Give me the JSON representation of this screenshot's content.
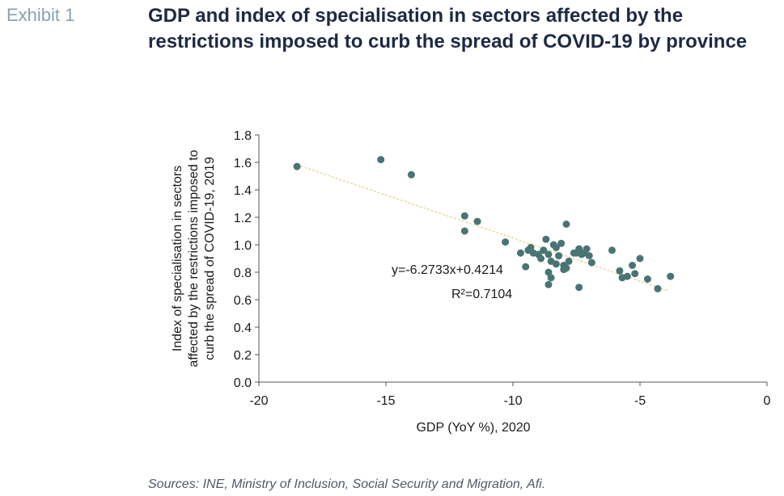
{
  "header": {
    "exhibit_label": "Exhibit 1",
    "title": "GDP and index of specialisation in sectors affected by the restrictions imposed to curb the spread of COVID-19 by province"
  },
  "footer": {
    "source": "Sources: INE, Ministry of Inclusion, Social Security and Migration, Afi."
  },
  "colors": {
    "point": "#4a7474",
    "trendline": "#e6dca0",
    "axis": "#555555",
    "exhibit": "#8aa0b4",
    "title": "#1e2a44"
  },
  "chart_data": {
    "type": "scatter",
    "title": "GDP and index of specialisation in sectors affected by the restrictions imposed to curb the spread of COVID-19 by province",
    "xlabel": "GDP (YoY %), 2020",
    "ylabel_lines": [
      "Index of specialisation in sectors",
      "affected by the restrictions imposed to",
      "curb the spread of COVID-19, 2019"
    ],
    "xlim": [
      -20,
      0
    ],
    "ylim": [
      0,
      1.8
    ],
    "x_ticks": [
      "-20",
      "-15",
      "-10",
      "-5",
      "0"
    ],
    "y_ticks": [
      "0.0",
      "0.2",
      "0.4",
      "0.6",
      "0.8",
      "1.0",
      "1.2",
      "1.4",
      "1.6",
      "1.8"
    ],
    "grid": false,
    "trendline": {
      "slope": -6.2733,
      "intercept": 0.4214,
      "x_range": [
        -18.5,
        -3.9
      ]
    },
    "annotations": {
      "equation": "y=-6.2733x+0.4214",
      "r_squared": "R²=0.7104"
    },
    "points": [
      {
        "x": -18.5,
        "y": 1.57
      },
      {
        "x": -15.2,
        "y": 1.62
      },
      {
        "x": -14.0,
        "y": 1.51
      },
      {
        "x": -11.9,
        "y": 1.21
      },
      {
        "x": -11.9,
        "y": 1.1
      },
      {
        "x": -11.4,
        "y": 1.17
      },
      {
        "x": -10.3,
        "y": 1.02
      },
      {
        "x": -9.7,
        "y": 0.94
      },
      {
        "x": -9.5,
        "y": 0.84
      },
      {
        "x": -9.4,
        "y": 0.96
      },
      {
        "x": -9.3,
        "y": 0.98
      },
      {
        "x": -9.2,
        "y": 0.94
      },
      {
        "x": -9.0,
        "y": 0.93
      },
      {
        "x": -8.9,
        "y": 0.9
      },
      {
        "x": -8.8,
        "y": 0.96
      },
      {
        "x": -8.7,
        "y": 1.04
      },
      {
        "x": -8.6,
        "y": 0.93
      },
      {
        "x": -8.6,
        "y": 0.8
      },
      {
        "x": -8.6,
        "y": 0.71
      },
      {
        "x": -8.5,
        "y": 0.76
      },
      {
        "x": -8.5,
        "y": 0.88
      },
      {
        "x": -8.4,
        "y": 1.0
      },
      {
        "x": -8.3,
        "y": 0.98
      },
      {
        "x": -8.3,
        "y": 0.86
      },
      {
        "x": -8.2,
        "y": 0.92
      },
      {
        "x": -8.1,
        "y": 1.01
      },
      {
        "x": -8.0,
        "y": 0.85
      },
      {
        "x": -8.0,
        "y": 0.82
      },
      {
        "x": -7.9,
        "y": 1.15
      },
      {
        "x": -7.9,
        "y": 0.83
      },
      {
        "x": -7.8,
        "y": 0.88
      },
      {
        "x": -7.6,
        "y": 0.94
      },
      {
        "x": -7.5,
        "y": 0.94
      },
      {
        "x": -7.4,
        "y": 0.97
      },
      {
        "x": -7.4,
        "y": 0.69
      },
      {
        "x": -7.3,
        "y": 0.93
      },
      {
        "x": -7.2,
        "y": 0.94
      },
      {
        "x": -7.1,
        "y": 0.97
      },
      {
        "x": -7.0,
        "y": 0.92
      },
      {
        "x": -6.9,
        "y": 0.87
      },
      {
        "x": -6.1,
        "y": 0.96
      },
      {
        "x": -5.8,
        "y": 0.81
      },
      {
        "x": -5.7,
        "y": 0.76
      },
      {
        "x": -5.5,
        "y": 0.77
      },
      {
        "x": -5.3,
        "y": 0.85
      },
      {
        "x": -5.2,
        "y": 0.79
      },
      {
        "x": -5.0,
        "y": 0.9
      },
      {
        "x": -4.7,
        "y": 0.75
      },
      {
        "x": -4.3,
        "y": 0.68
      },
      {
        "x": -3.8,
        "y": 0.77
      }
    ]
  }
}
